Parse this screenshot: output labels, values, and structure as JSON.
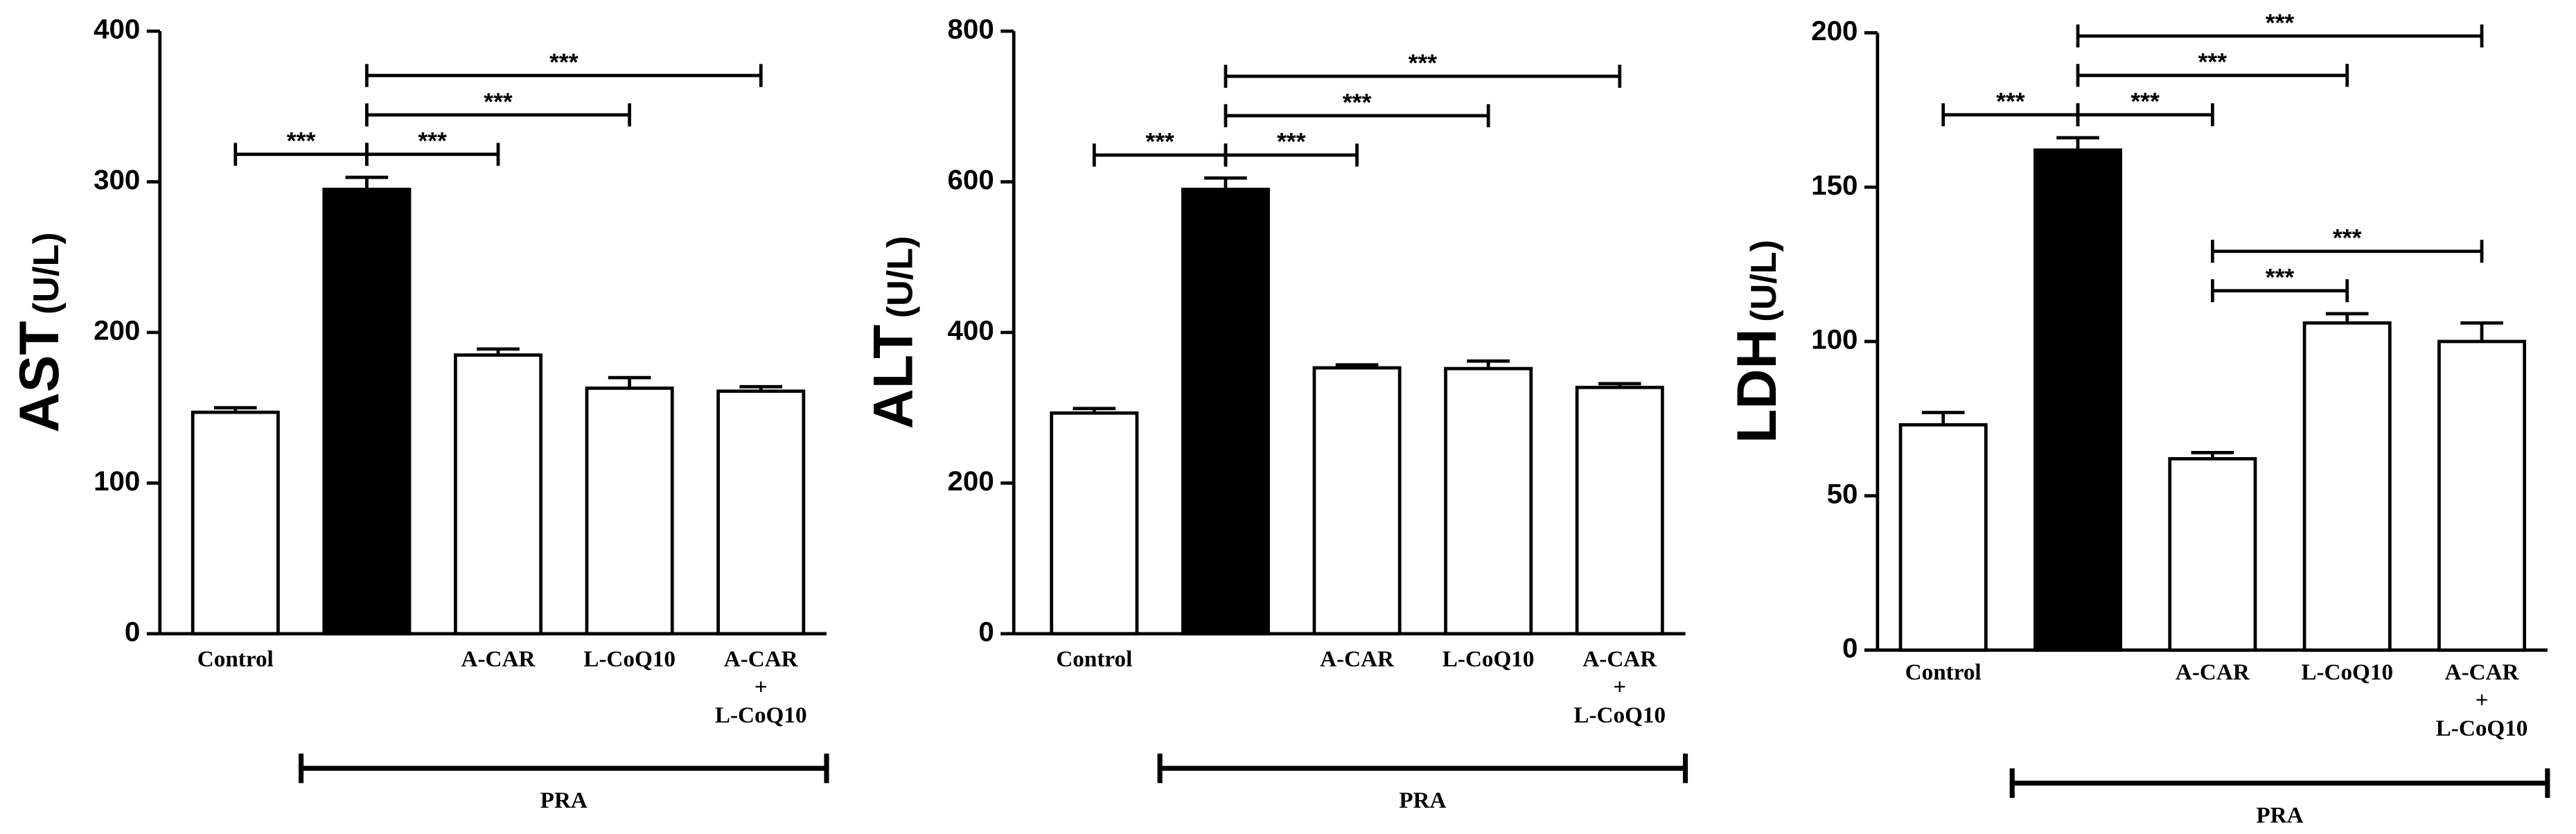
{
  "chart_data": [
    {
      "type": "bar",
      "ylabel": "AST",
      "ylabel_unit": "(U/L)",
      "categories": [
        "Control",
        null,
        "A-CAR",
        "L-CoQ10",
        "A-CAR + L-CoQ10"
      ],
      "values": [
        147,
        295,
        185,
        163,
        161
      ],
      "errors": [
        3,
        8,
        4,
        7,
        3
      ],
      "colors": [
        "#ffffff",
        "#000000",
        "#ffffff",
        "#ffffff",
        "#ffffff"
      ],
      "ylim": [
        0,
        400
      ],
      "yticks": [
        0,
        100,
        200,
        300,
        400
      ],
      "group": {
        "label": "PRA",
        "from": 1,
        "to": 4
      },
      "annotations": [
        {
          "from": 0,
          "to": 1,
          "label": "***"
        },
        {
          "from": 1,
          "to": 2,
          "label": "***"
        },
        {
          "from": 1,
          "to": 3,
          "label": "***"
        },
        {
          "from": 1,
          "to": 4,
          "label": "***"
        }
      ]
    },
    {
      "type": "bar",
      "ylabel": "ALT",
      "ylabel_unit": "(U/L)",
      "categories": [
        "Control",
        null,
        "A-CAR",
        "L-CoQ10",
        "A-CAR + L-CoQ10"
      ],
      "values": [
        293,
        590,
        353,
        352,
        327
      ],
      "errors": [
        6,
        15,
        4,
        10,
        5
      ],
      "colors": [
        "#ffffff",
        "#000000",
        "#ffffff",
        "#ffffff",
        "#ffffff"
      ],
      "ylim": [
        0,
        800
      ],
      "yticks": [
        0,
        200,
        400,
        600,
        800
      ],
      "group": {
        "label": "PRA",
        "from": 1,
        "to": 4
      },
      "annotations": [
        {
          "from": 0,
          "to": 1,
          "label": "***"
        },
        {
          "from": 1,
          "to": 2,
          "label": "***"
        },
        {
          "from": 1,
          "to": 3,
          "label": "***"
        },
        {
          "from": 1,
          "to": 4,
          "label": "***"
        }
      ]
    },
    {
      "type": "bar",
      "ylabel": "LDH",
      "ylabel_unit": "(U/L)",
      "categories": [
        "Control",
        null,
        "A-CAR",
        "L-CoQ10",
        "A-CAR + L-CoQ10"
      ],
      "values": [
        73,
        162,
        62,
        106,
        100
      ],
      "errors": [
        4,
        4,
        2,
        3,
        6
      ],
      "colors": [
        "#ffffff",
        "#000000",
        "#ffffff",
        "#ffffff",
        "#ffffff"
      ],
      "ylim": [
        0,
        200
      ],
      "yticks": [
        0,
        50,
        100,
        150,
        200
      ],
      "group": {
        "label": "PRA",
        "from": 1,
        "to": 4
      },
      "annotations": [
        {
          "from": 0,
          "to": 1,
          "label": "***"
        },
        {
          "from": 1,
          "to": 2,
          "label": "***"
        },
        {
          "from": 1,
          "to": 3,
          "label": "***"
        },
        {
          "from": 1,
          "to": 4,
          "label": "***"
        },
        {
          "from": 2,
          "to": 3,
          "label": "***"
        },
        {
          "from": 2,
          "to": 4,
          "label": "***"
        }
      ]
    }
  ]
}
